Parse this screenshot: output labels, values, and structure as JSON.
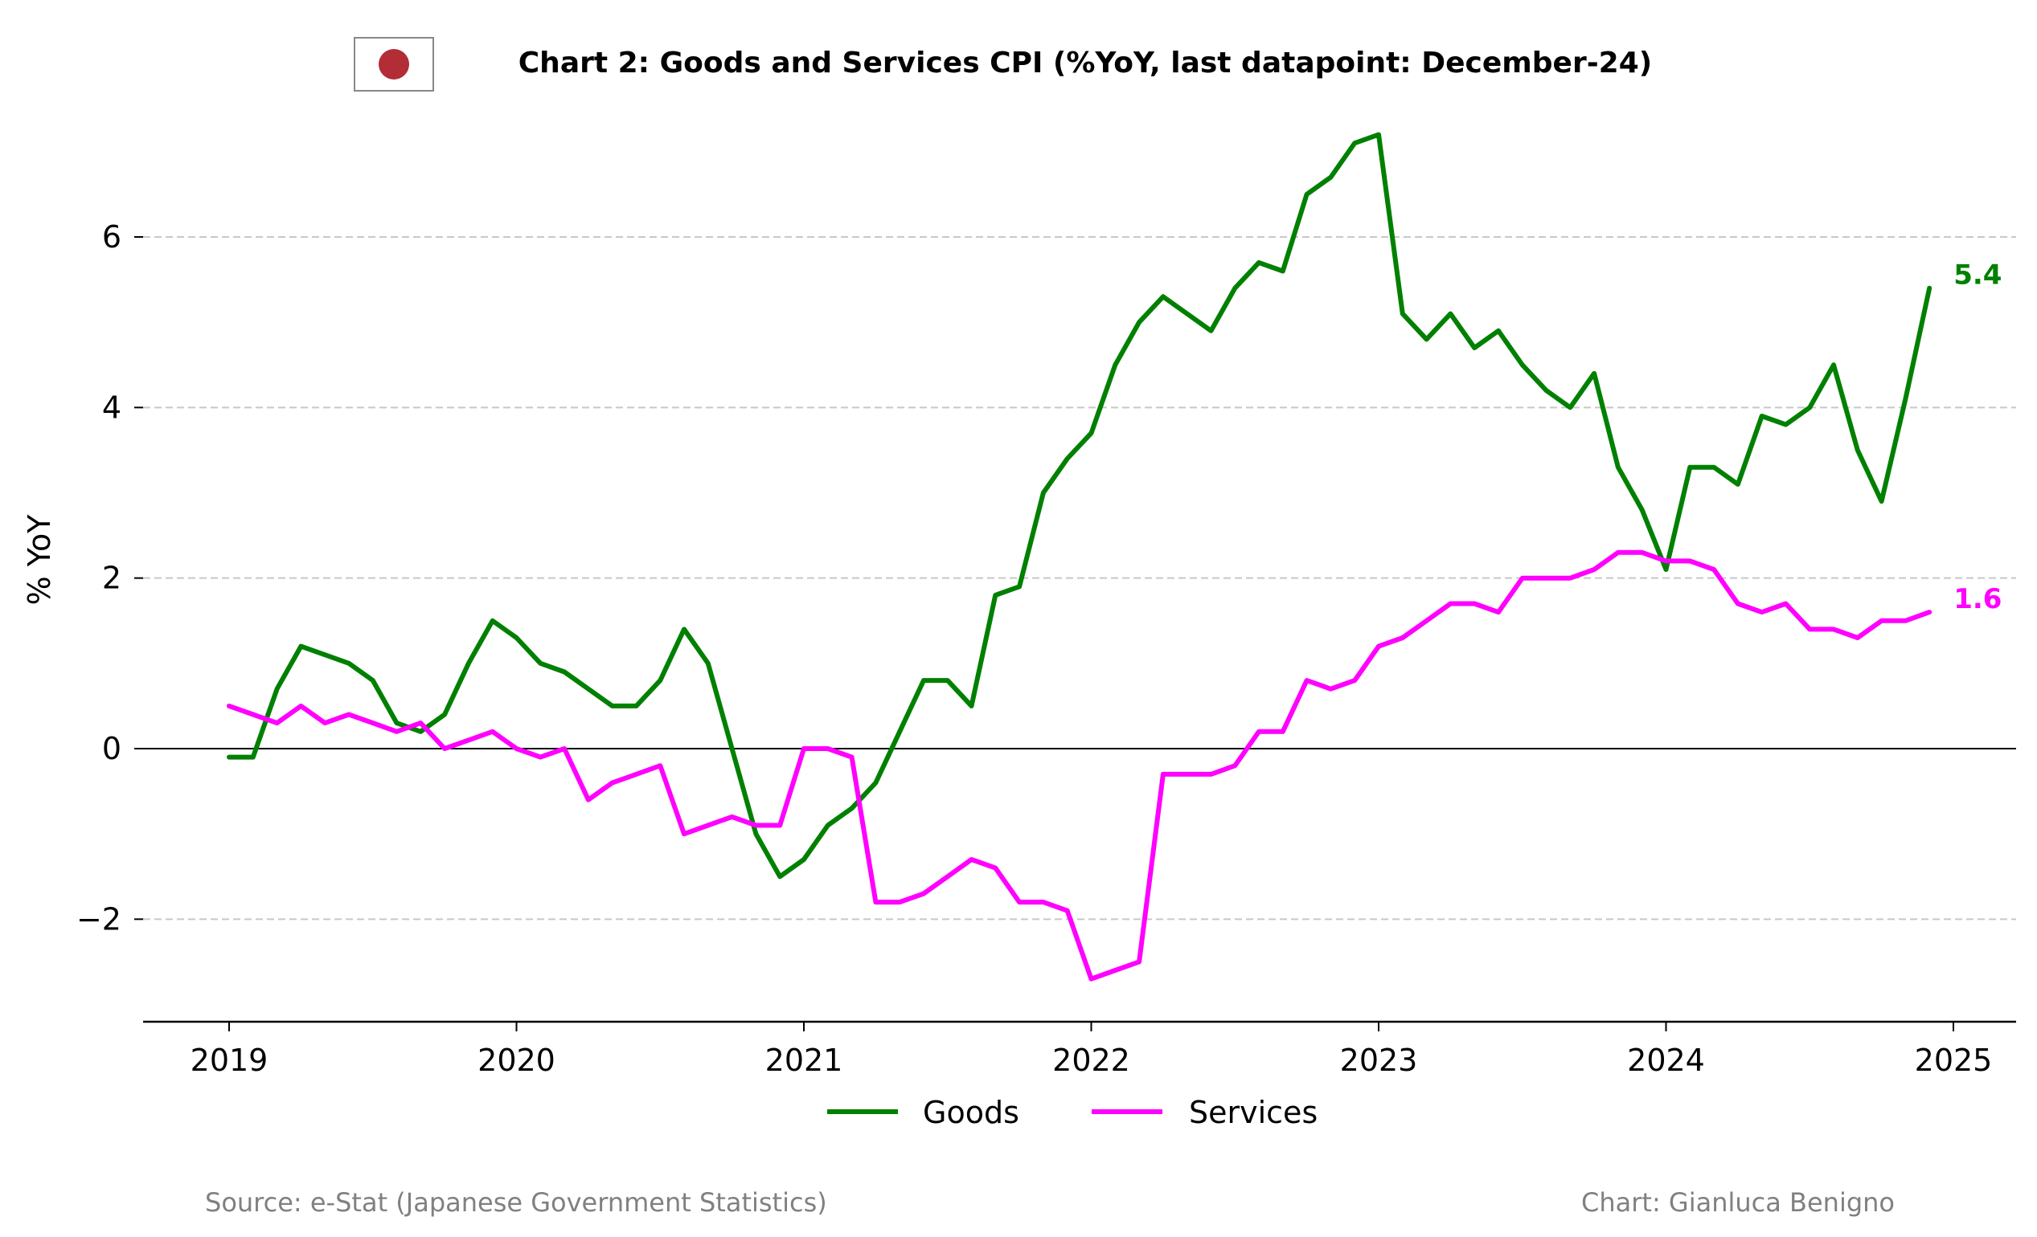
{
  "chart_data": {
    "type": "line",
    "title": "Chart 2: Goods and Services CPI (%YoY, last datapoint: December-24)",
    "ylabel": "% YoY",
    "xlabel": "",
    "ylim": [
      -3.2,
      7.4
    ],
    "xlim": [
      2018.7,
      2025.2
    ],
    "grid": "horizontal dashed",
    "legend": "bottom-center",
    "x_ticks": [
      2019,
      2020,
      2021,
      2022,
      2023,
      2024,
      2025
    ],
    "x_tick_labels": [
      "2019",
      "2020",
      "2021",
      "2022",
      "2023",
      "2024",
      "2025"
    ],
    "y_ticks": [
      -2,
      0,
      2,
      4,
      6
    ],
    "y_tick_labels": [
      "−2",
      "0",
      "2",
      "4",
      "6"
    ],
    "start": "2019-01",
    "series": [
      {
        "name": "Goods",
        "color": "#008000",
        "end_label": "5.4",
        "values": [
          -0.1,
          -0.1,
          0.7,
          1.2,
          1.1,
          1.0,
          0.8,
          0.3,
          0.2,
          0.4,
          1.0,
          1.5,
          1.3,
          1.0,
          0.9,
          0.7,
          0.5,
          0.5,
          0.8,
          1.4,
          1.0,
          0.0,
          -1.0,
          -1.5,
          -1.3,
          -0.9,
          -0.7,
          -0.4,
          0.2,
          0.8,
          0.8,
          0.5,
          1.8,
          1.9,
          3.0,
          3.4,
          3.7,
          4.5,
          5.0,
          5.3,
          5.1,
          4.9,
          5.4,
          5.7,
          5.6,
          6.5,
          6.7,
          7.1,
          7.2,
          5.1,
          4.8,
          5.1,
          4.7,
          4.9,
          4.5,
          4.2,
          4.0,
          4.4,
          3.3,
          2.8,
          2.1,
          3.3,
          3.3,
          3.1,
          3.9,
          3.8,
          4.0,
          4.5,
          3.5,
          2.9,
          4.1,
          5.4
        ]
      },
      {
        "name": "Services",
        "color": "#ff00ff",
        "end_label": "1.6",
        "values": [
          0.5,
          0.4,
          0.3,
          0.5,
          0.3,
          0.4,
          0.3,
          0.2,
          0.3,
          0.0,
          0.1,
          0.2,
          0.0,
          -0.1,
          0.0,
          -0.6,
          -0.4,
          -0.3,
          -0.2,
          -1.0,
          -0.9,
          -0.8,
          -0.9,
          -0.9,
          0.0,
          0.0,
          -0.1,
          -1.8,
          -1.8,
          -1.7,
          -1.5,
          -1.3,
          -1.4,
          -1.8,
          -1.8,
          -1.9,
          -2.7,
          -2.6,
          -2.5,
          -0.3,
          -0.3,
          -0.3,
          -0.2,
          0.2,
          0.2,
          0.8,
          0.7,
          0.8,
          1.2,
          1.3,
          1.5,
          1.7,
          1.7,
          1.6,
          2.0,
          2.0,
          2.0,
          2.1,
          2.3,
          2.3,
          2.2,
          2.2,
          2.1,
          1.7,
          1.6,
          1.7,
          1.4,
          1.4,
          1.3,
          1.5,
          1.5,
          1.6
        ]
      }
    ]
  },
  "flag_icon": "japan-flag-icon",
  "flag_colors": {
    "background": "#ffffff",
    "disc": "#b22d35",
    "border": "#888888"
  },
  "footer": {
    "source": "Source: e-Stat (Japanese Government Statistics)",
    "credit": "Chart: Gianluca Benigno"
  }
}
